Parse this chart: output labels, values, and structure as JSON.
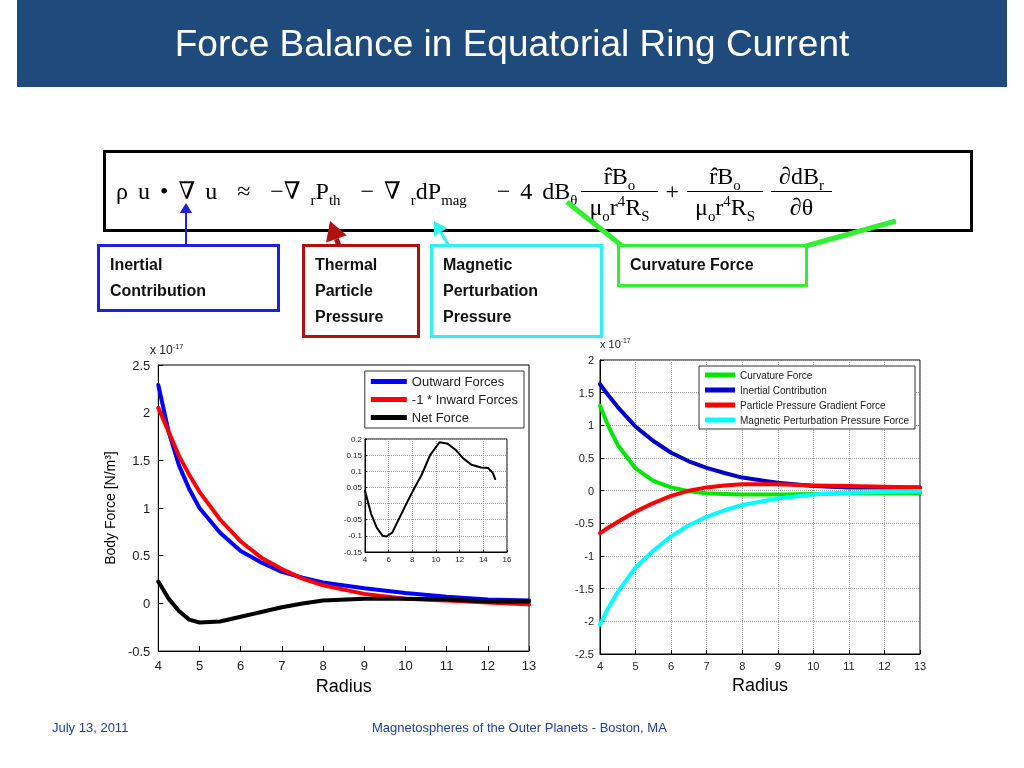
{
  "chart_data": [
    {
      "type": "line",
      "title": "Force Balance in Equatorial Ring Current",
      "xlabel": "Radius",
      "ylabel": "Body Force [N/m³]",
      "annotations": [
        "x 10$^{-17}$",
        "ρ u • ∇ u  ≈  −∇ $_{r}$P$_{th}$  − ∇ $_{r}$dP$_{mag}$   − 4 dB$_{θ}$",
        "r̂B$_{o}$",
        "μ$_{o}$r$^{4}$R$_{S}$",
        "+",
        "r̂B$_{o}$",
        "μ$_{o}$r$^{4}$R$_{S}$",
        "∂dB$_{r}$",
        "∂θ",
        "Inertial Contribution",
        "Thermal Particle Pressure",
        "Magnetic Perturbation Pressure",
        "Curvature Force",
        "July 13, 2011",
        "Magnetospheres of the Outer Planets - Boston, MA"
      ],
      "x": [
        4,
        4.25,
        4.5,
        4.75,
        5,
        5.5,
        6,
        6.5,
        7,
        7.5,
        8,
        9,
        10,
        11,
        12,
        13
      ],
      "series": [
        {
          "name": "Outward Forces",
          "color": "#0000ff",
          "values": [
            2.29,
            1.8,
            1.45,
            1.2,
            1.0,
            0.74,
            0.55,
            0.43,
            0.33,
            0.27,
            0.22,
            0.16,
            0.11,
            0.07,
            0.04,
            0.03
          ]
        },
        {
          "name": "-1 * Inward Forces",
          "color": "#ff0000",
          "values": [
            2.05,
            1.8,
            1.55,
            1.35,
            1.17,
            0.88,
            0.65,
            0.48,
            0.36,
            0.26,
            0.19,
            0.1,
            0.05,
            0.03,
            0.01,
            -0.01
          ]
        },
        {
          "name": "Net Force",
          "color": "#000000",
          "values": [
            0.23,
            0.05,
            -0.08,
            -0.17,
            -0.2,
            -0.19,
            -0.14,
            -0.09,
            -0.04,
            0.0,
            0.03,
            0.05,
            0.05,
            0.04,
            0.02,
            0.02
          ]
        }
      ],
      "xlim": [
        4,
        13
      ],
      "xticks": [
        4,
        5,
        6,
        7,
        8,
        9,
        10,
        11,
        12,
        13
      ],
      "ylim": [
        -0.5,
        2.5
      ],
      "yticks": [
        -0.5,
        0,
        0.5,
        1,
        1.5,
        2,
        2.5
      ],
      "grid": false,
      "legend": "top right"
    },
    {
      "type": "line",
      "x": [
        4,
        4.5,
        5,
        5.5,
        5.8,
        6.3,
        6.9,
        7.5,
        8.2,
        8.8,
        9.5,
        10.3,
        11,
        11.7,
        12.3,
        13,
        13.8,
        14.4,
        14.8,
        15
      ],
      "series": [
        {
          "color": "#000000",
          "values": [
            0.04,
            -0.03,
            -0.075,
            -0.1,
            -0.102,
            -0.09,
            -0.045,
            0.0,
            0.05,
            0.09,
            0.15,
            0.19,
            0.185,
            0.165,
            0.14,
            0.12,
            0.112,
            0.11,
            0.095,
            0.076
          ]
        }
      ],
      "xlim": [
        4,
        16
      ],
      "xticks": [
        4,
        6,
        8,
        10,
        12,
        14,
        16
      ],
      "ylim": [
        -0.15,
        0.2
      ],
      "yticks": [
        -0.15,
        -0.1,
        -0.05,
        0,
        0.05,
        0.1,
        0.15,
        0.2
      ],
      "grid": true
    },
    {
      "type": "line",
      "xlabel": "Radius",
      "annotations": [
        "x 10$^{-17}$"
      ],
      "x": [
        4,
        4.25,
        4.5,
        5,
        5.5,
        6,
        6.5,
        7,
        7.5,
        8,
        9,
        10,
        11,
        12,
        13
      ],
      "series": [
        {
          "name": "Curvature Force",
          "color": "#00e600",
          "values": [
            1.3,
            0.97,
            0.7,
            0.34,
            0.15,
            0.05,
            -0.01,
            -0.04,
            -0.05,
            -0.06,
            -0.06,
            -0.05,
            -0.04,
            -0.04,
            -0.04
          ]
        },
        {
          "name": "Inertial Contribution",
          "color": "#0000cc",
          "values": [
            1.63,
            1.45,
            1.28,
            0.98,
            0.76,
            0.58,
            0.45,
            0.35,
            0.27,
            0.2,
            0.12,
            0.07,
            0.05,
            0.05,
            0.05
          ]
        },
        {
          "name": "Particle Pressure Gradient Force",
          "color": "#ff0000",
          "values": [
            -0.65,
            -0.56,
            -0.48,
            -0.32,
            -0.19,
            -0.08,
            0.0,
            0.05,
            0.08,
            0.1,
            0.1,
            0.08,
            0.07,
            0.06,
            0.05
          ]
        },
        {
          "name": "Magnetic Perturbation Pressure Force",
          "color": "#00ffff",
          "values": [
            -2.05,
            -1.78,
            -1.55,
            -1.18,
            -0.92,
            -0.7,
            -0.53,
            -0.4,
            -0.3,
            -0.22,
            -0.12,
            -0.06,
            -0.03,
            -0.02,
            -0.01
          ]
        }
      ],
      "xlim": [
        4,
        13
      ],
      "xticks": [
        4,
        5,
        6,
        7,
        8,
        9,
        10,
        11,
        12,
        13
      ],
      "ylim": [
        -2.5,
        2
      ],
      "yticks": [
        -2.5,
        -2,
        -1.5,
        -1,
        -0.5,
        0,
        0.5,
        1,
        1.5,
        2
      ],
      "grid": true,
      "legend": "top right"
    }
  ]
}
